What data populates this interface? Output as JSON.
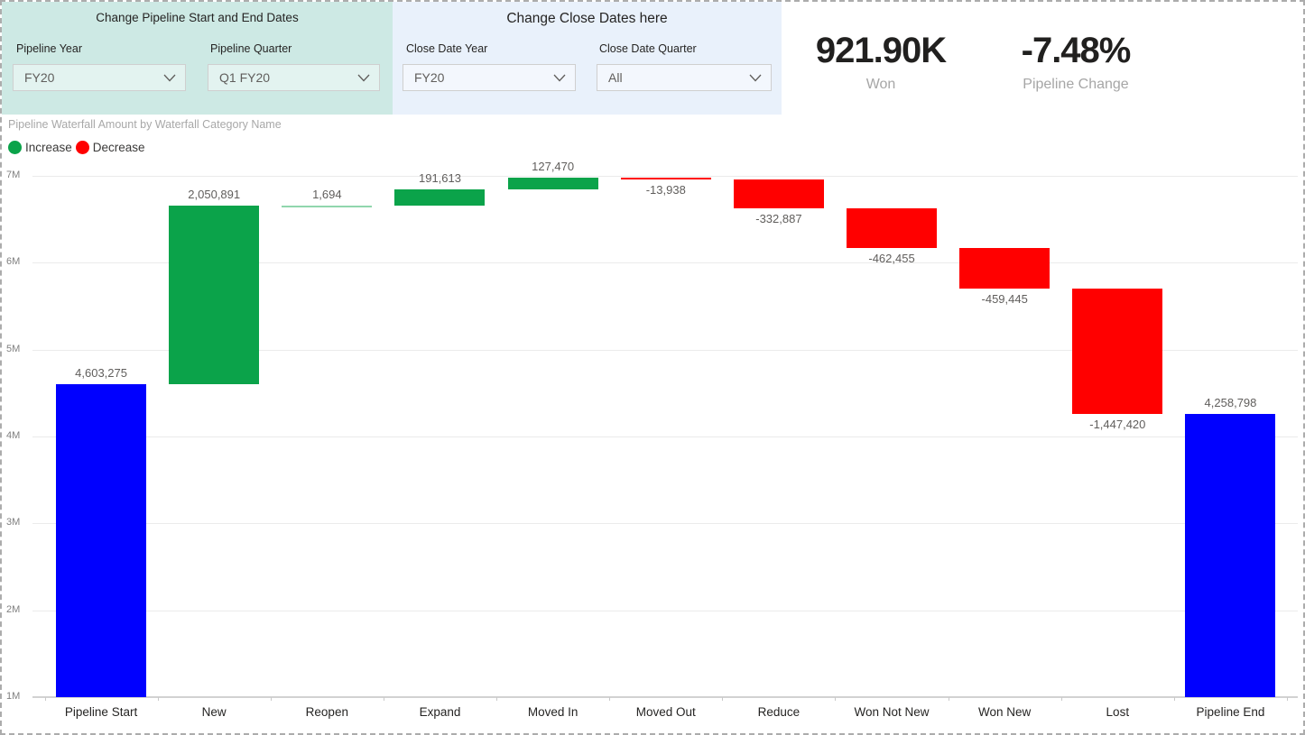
{
  "filters": {
    "pipeline_panel": {
      "title": "Change Pipeline Start and End Dates",
      "background": "#CDE9E4",
      "fields": [
        {
          "label": "Pipeline Year",
          "value": "FY20"
        },
        {
          "label": "Pipeline Quarter",
          "value": "Q1 FY20"
        }
      ]
    },
    "close_panel": {
      "title": "Change Close Dates here",
      "background": "#E9F1FB",
      "fields": [
        {
          "label": "Close Date Year",
          "value": "FY20"
        },
        {
          "label": "Close Date Quarter",
          "value": "All"
        }
      ]
    }
  },
  "kpis": [
    {
      "value": "921.90K",
      "label": "Won"
    },
    {
      "value": "-7.48%",
      "label": "Pipeline Change"
    }
  ],
  "chart_data": {
    "type": "waterfall",
    "title": "Pipeline Waterfall Amount by Waterfall Category Name",
    "legend": [
      {
        "label": "Increase",
        "color": "#0BA34A"
      },
      {
        "label": "Decrease",
        "color": "#FF0000"
      }
    ],
    "colors": {
      "total": "#0000FF",
      "increase": "#0BA34A",
      "decrease": "#FF0000"
    },
    "categories": [
      "Pipeline Start",
      "New",
      "Reopen",
      "Expand",
      "Moved In",
      "Moved Out",
      "Reduce",
      "Won Not New",
      "Won New",
      "Lost",
      "Pipeline End"
    ],
    "values": [
      4603275,
      2050891,
      1694,
      191613,
      127470,
      -13938,
      -332887,
      -462455,
      -459445,
      -1447420,
      4258798
    ],
    "kinds": [
      "total",
      "increase",
      "increase",
      "increase",
      "increase",
      "decrease",
      "decrease",
      "decrease",
      "decrease",
      "decrease",
      "total"
    ],
    "data_labels": [
      "4,603,275",
      "2,050,891",
      "1,694",
      "191,613",
      "127,470",
      "-13,938",
      "-332,887",
      "-462,455",
      "-459,445",
      "-1,447,420",
      "4,258,798"
    ],
    "y_axis": {
      "min": 1000000,
      "grid": true,
      "ticks": [
        {
          "label": "7M",
          "value": 7000000
        },
        {
          "label": "6M",
          "value": 6000000
        },
        {
          "label": "5M",
          "value": 5000000
        },
        {
          "label": "4M",
          "value": 4000000
        },
        {
          "label": "3M",
          "value": 3000000
        },
        {
          "label": "2M",
          "value": 2000000
        },
        {
          "label": "1M",
          "value": 1000000
        }
      ]
    }
  }
}
